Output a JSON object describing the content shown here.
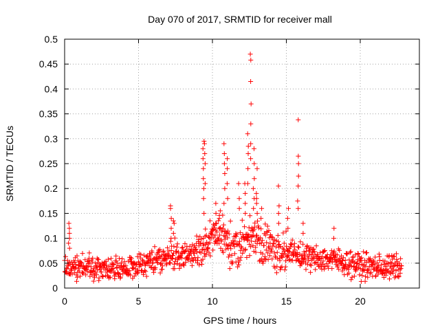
{
  "chart_data": {
    "type": "scatter",
    "title": "Day 070 of 2017, SRMTID for receiver mall",
    "xlabel": "GPS time / hours",
    "ylabel": "SRMTID / TECUs",
    "xlim": [
      0,
      24
    ],
    "ylim": [
      0,
      0.5
    ],
    "xticks": [
      0,
      5,
      10,
      15,
      20
    ],
    "xtick_labels": [
      "0",
      "5",
      "10",
      "15",
      "20"
    ],
    "yticks": [
      0,
      0.05,
      0.1,
      0.15,
      0.2,
      0.25,
      0.3,
      0.35,
      0.4,
      0.45,
      0.5
    ],
    "ytick_labels": [
      "0",
      "0.05",
      "0.1",
      "0.15",
      "0.2",
      "0.25",
      "0.3",
      "0.35",
      "0.4",
      "0.45",
      "0.5"
    ],
    "grid": true,
    "marker": "+",
    "color": "#ff0000",
    "baseline_profile": [
      [
        0.0,
        0.045
      ],
      [
        2.0,
        0.04
      ],
      [
        4.0,
        0.04
      ],
      [
        5.5,
        0.05
      ],
      [
        6.5,
        0.058
      ],
      [
        7.5,
        0.065
      ],
      [
        8.5,
        0.065
      ],
      [
        9.5,
        0.085
      ],
      [
        10.5,
        0.11
      ],
      [
        11.0,
        0.1
      ],
      [
        11.5,
        0.07
      ],
      [
        12.0,
        0.085
      ],
      [
        12.5,
        0.11
      ],
      [
        13.0,
        0.1
      ],
      [
        14.0,
        0.08
      ],
      [
        15.0,
        0.07
      ],
      [
        16.0,
        0.065
      ],
      [
        17.0,
        0.06
      ],
      [
        18.0,
        0.058
      ],
      [
        19.0,
        0.052
      ],
      [
        20.0,
        0.045
      ],
      [
        21.0,
        0.042
      ],
      [
        22.0,
        0.042
      ],
      [
        22.8,
        0.04
      ]
    ],
    "baseline_spread": 0.025,
    "spikes": [
      {
        "x": 0.3,
        "y": [
          0.08,
          0.09,
          0.1,
          0.11,
          0.12,
          0.13
        ]
      },
      {
        "x": 7.2,
        "y": [
          0.1,
          0.12,
          0.14,
          0.16,
          0.165
        ]
      },
      {
        "x": 7.4,
        "y": [
          0.11,
          0.13,
          0.135
        ]
      },
      {
        "x": 9.4,
        "y": [
          0.15,
          0.18,
          0.2,
          0.22,
          0.24,
          0.26,
          0.28,
          0.295
        ]
      },
      {
        "x": 9.5,
        "y": [
          0.21,
          0.25,
          0.27,
          0.29
        ]
      },
      {
        "x": 10.2,
        "y": [
          0.13,
          0.15,
          0.17
        ]
      },
      {
        "x": 10.5,
        "y": [
          0.12,
          0.14,
          0.155
        ]
      },
      {
        "x": 10.8,
        "y": [
          0.17,
          0.2,
          0.23,
          0.25,
          0.27,
          0.29
        ]
      },
      {
        "x": 11.0,
        "y": [
          0.18,
          0.21,
          0.24,
          0.26
        ]
      },
      {
        "x": 11.8,
        "y": [
          0.16,
          0.18,
          0.21
        ]
      },
      {
        "x": 12.2,
        "y": [
          0.15,
          0.17,
          0.19,
          0.21
        ]
      },
      {
        "x": 12.4,
        "y": [
          0.21,
          0.24,
          0.27,
          0.285,
          0.31
        ]
      },
      {
        "x": 12.6,
        "y": [
          0.26,
          0.29,
          0.33,
          0.37,
          0.415,
          0.458,
          0.47
        ]
      },
      {
        "x": 12.8,
        "y": [
          0.16,
          0.18,
          0.2,
          0.22,
          0.25,
          0.28
        ]
      },
      {
        "x": 13.0,
        "y": [
          0.15,
          0.17,
          0.18,
          0.19,
          0.24
        ]
      },
      {
        "x": 13.3,
        "y": [
          0.14,
          0.16
        ]
      },
      {
        "x": 14.5,
        "y": [
          0.13,
          0.15,
          0.165,
          0.205
        ]
      },
      {
        "x": 15.1,
        "y": [
          0.12,
          0.14,
          0.16
        ]
      },
      {
        "x": 15.8,
        "y": [
          0.16,
          0.175,
          0.205,
          0.225,
          0.25,
          0.265,
          0.338
        ]
      },
      {
        "x": 16.1,
        "y": [
          0.11,
          0.13
        ]
      },
      {
        "x": 18.2,
        "y": [
          0.1,
          0.12
        ]
      }
    ]
  }
}
